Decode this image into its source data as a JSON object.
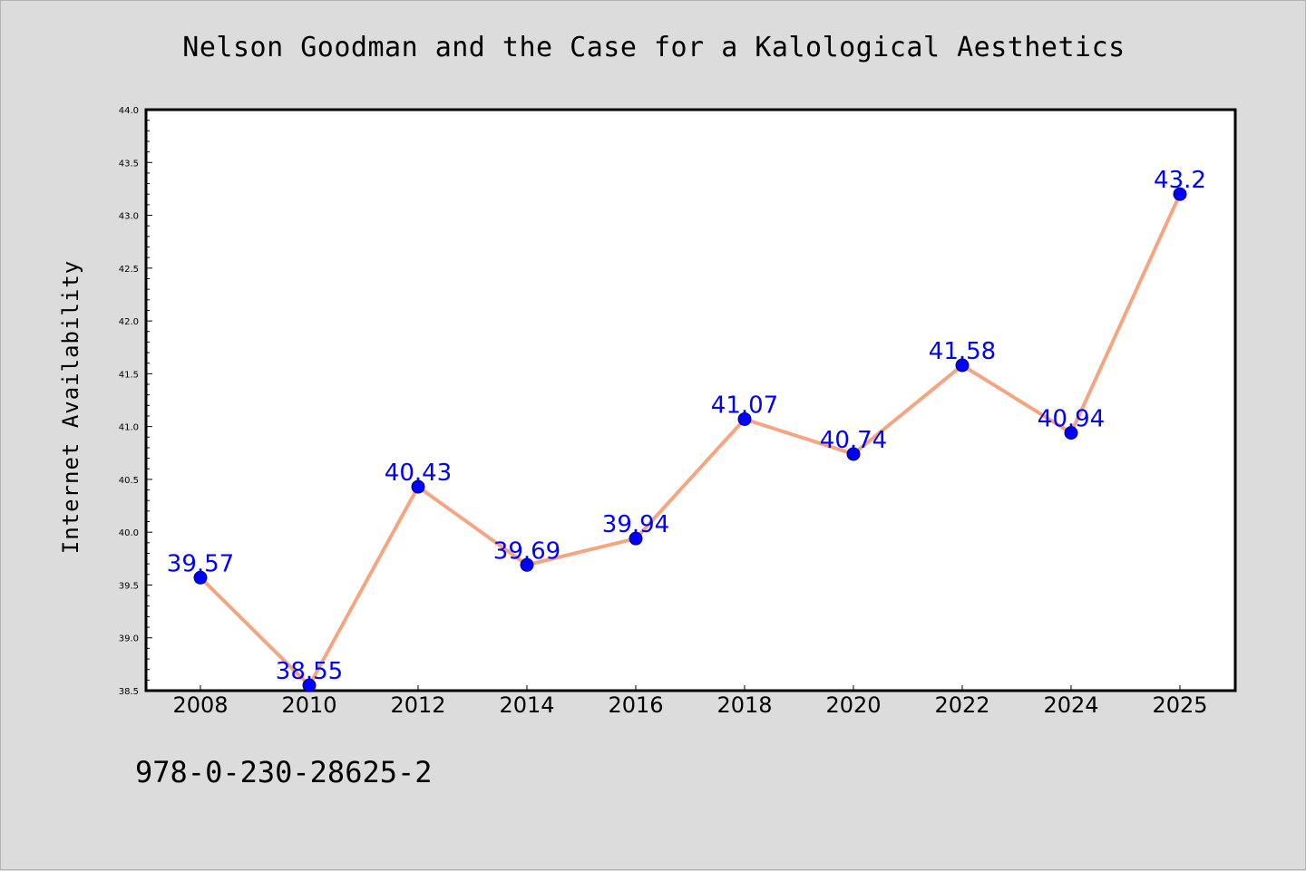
{
  "chart_data": {
    "type": "line",
    "title": "Nelson Goodman and the Case for a Kalological Aesthetics",
    "xlabel": "",
    "ylabel": "Internet Availability",
    "x": [
      "2008",
      "2010",
      "2012",
      "2014",
      "2016",
      "2018",
      "2020",
      "2022",
      "2024",
      "2025"
    ],
    "series": [
      {
        "values": [
          39.57,
          38.55,
          40.43,
          39.69,
          39.94,
          41.07,
          40.74,
          41.58,
          40.94,
          43.2
        ],
        "labels": [
          "39.57",
          "38.55",
          "40.43",
          "39.69",
          "39.94",
          "41.07",
          "40.74",
          "41.58",
          "40.94",
          "43.2"
        ]
      }
    ],
    "ylim": [
      38.5,
      44.0
    ],
    "yticks": [
      "38.5",
      "39.0",
      "39.5",
      "40.0",
      "40.5",
      "41.0",
      "41.5",
      "42.0",
      "42.5",
      "43.0",
      "43.5",
      "44.0"
    ],
    "grid": false,
    "legend": "none",
    "colors": {
      "line": "#f4a582",
      "marker": "#0000ff",
      "data_label": "#0000ff",
      "background": "#dcdcdc",
      "plot_area": "#ffffff"
    }
  },
  "footer": {
    "code": "978-0-230-28625-2"
  }
}
